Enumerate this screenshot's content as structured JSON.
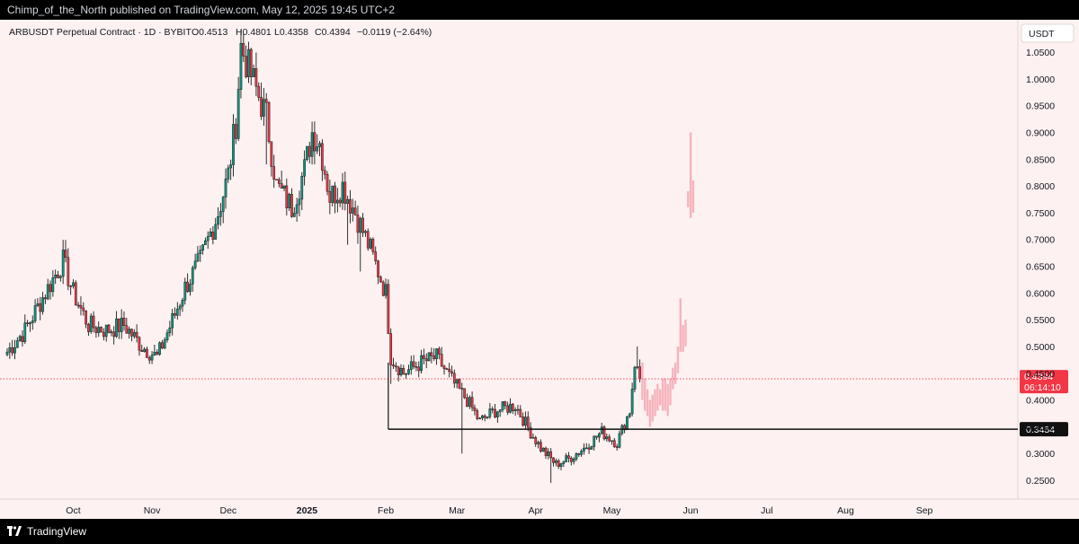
{
  "header": {
    "text": "Chimp_of_the_North published on TradingView.com, May 12, 2025 19:45 UTC+2"
  },
  "footer": {
    "brand": "TradingView"
  },
  "legend": {
    "symbol": "ARBUSDT Perpetual Contract · 1D · BYBIT",
    "open": "O0.4513",
    "high": "H0.4801",
    "low": "L0.4358",
    "close": "C0.4394",
    "change": "−0.0119 (−2.64%)"
  },
  "currency": "USDT",
  "chart_data": {
    "type": "candlestick",
    "ylim": [
      0.22,
      1.09
    ],
    "y_ticks": [
      0.25,
      0.3,
      0.35,
      0.4,
      0.45,
      0.5,
      0.55,
      0.6,
      0.65,
      0.7,
      0.75,
      0.8,
      0.85,
      0.9,
      0.95,
      1.0,
      1.05
    ],
    "y_tick_labels": [
      "0.2500",
      "0.3000",
      "0.3500",
      "0.4000",
      "0.4500",
      "0.5000",
      "0.5500",
      "0.6000",
      "0.6500",
      "0.7000",
      "0.7500",
      "0.8000",
      "0.8500",
      "0.9000",
      "0.9500",
      "1.0000",
      "1.0500"
    ],
    "x_axis_labels": [
      "Oct",
      "Nov",
      "Dec",
      "2025",
      "Feb",
      "Mar",
      "Apr",
      "May",
      "Jun",
      "Jul",
      "Aug",
      "Sep"
    ],
    "x_axis_dates": [
      "2024-10-01",
      "2024-11-01",
      "2024-12-01",
      "2025-01-01",
      "2025-02-01",
      "2025-03-01",
      "2025-04-01",
      "2025-05-01",
      "2025-06-01",
      "2025-07-01",
      "2025-08-01",
      "2025-09-01"
    ],
    "x_range": [
      "2024-09-05",
      "2025-09-30"
    ],
    "price_line": {
      "value": 0.4394,
      "label": "0.4394",
      "countdown": "06:14:10",
      "color": "#f23645"
    },
    "support_line": {
      "value": 0.3454,
      "label": "0.3454",
      "start": "2025-02-02",
      "drop_from": 0.47
    },
    "colors": {
      "up": "#089981",
      "down": "#f23645",
      "projection": "#f5b3bd",
      "background": "#fdf1f1"
    },
    "daily_ohlc": {
      "start": "2024-09-05",
      "anchors": [
        [
          "2024-09-05",
          0.49
        ],
        [
          "2024-09-12",
          0.53
        ],
        [
          "2024-09-20",
          0.6
        ],
        [
          "2024-09-27",
          0.66
        ],
        [
          "2024-10-01",
          0.6
        ],
        [
          "2024-10-07",
          0.54
        ],
        [
          "2024-10-14",
          0.53
        ],
        [
          "2024-10-21",
          0.54
        ],
        [
          "2024-10-28",
          0.5
        ],
        [
          "2024-11-03",
          0.48
        ],
        [
          "2024-11-10",
          0.56
        ],
        [
          "2024-11-14",
          0.61
        ],
        [
          "2024-11-20",
          0.66
        ],
        [
          "2024-11-27",
          0.75
        ],
        [
          "2024-12-01",
          0.82
        ],
        [
          "2024-12-04",
          0.92
        ],
        [
          "2024-12-06",
          1.06
        ],
        [
          "2024-12-09",
          1.02
        ],
        [
          "2024-12-12",
          0.98
        ],
        [
          "2024-12-16",
          0.93
        ],
        [
          "2024-12-20",
          0.8
        ],
        [
          "2024-12-26",
          0.76
        ],
        [
          "2024-12-31",
          0.83
        ],
        [
          "2025-01-03",
          0.9
        ],
        [
          "2025-01-06",
          0.88
        ],
        [
          "2025-01-10",
          0.78
        ],
        [
          "2025-01-15",
          0.8
        ],
        [
          "2025-01-20",
          0.75
        ],
        [
          "2025-01-26",
          0.68
        ],
        [
          "2025-02-01",
          0.6
        ],
        [
          "2025-02-03",
          0.48
        ],
        [
          "2025-02-08",
          0.45
        ],
        [
          "2025-02-15",
          0.47
        ],
        [
          "2025-02-21",
          0.48
        ],
        [
          "2025-02-28",
          0.43
        ],
        [
          "2025-03-05",
          0.4
        ],
        [
          "2025-03-10",
          0.36
        ],
        [
          "2025-03-16",
          0.38
        ],
        [
          "2025-03-24",
          0.39
        ],
        [
          "2025-03-30",
          0.34
        ],
        [
          "2025-04-03",
          0.31
        ],
        [
          "2025-04-09",
          0.28
        ],
        [
          "2025-04-14",
          0.29
        ],
        [
          "2025-04-20",
          0.31
        ],
        [
          "2025-04-27",
          0.34
        ],
        [
          "2025-05-03",
          0.32
        ],
        [
          "2025-05-08",
          0.38
        ],
        [
          "2025-05-10",
          0.47
        ],
        [
          "2025-05-12",
          0.4394
        ]
      ],
      "spikes": [
        [
          "2024-12-06",
          1.09
        ],
        [
          "2024-12-16",
          0.84
        ],
        [
          "2025-01-17",
          0.69
        ],
        [
          "2025-01-22",
          0.64
        ],
        [
          "2025-02-03",
          0.43
        ],
        [
          "2025-03-03",
          0.3
        ],
        [
          "2025-04-07",
          0.245
        ],
        [
          "2025-05-11",
          0.5
        ]
      ]
    },
    "projection_bars": [
      {
        "date": "2025-05-13",
        "low": 0.4,
        "high": 0.47
      },
      {
        "date": "2025-05-14",
        "low": 0.38,
        "high": 0.44
      },
      {
        "date": "2025-05-15",
        "low": 0.37,
        "high": 0.42
      },
      {
        "date": "2025-05-16",
        "low": 0.35,
        "high": 0.4
      },
      {
        "date": "2025-05-17",
        "low": 0.36,
        "high": 0.41
      },
      {
        "date": "2025-05-18",
        "low": 0.37,
        "high": 0.42
      },
      {
        "date": "2025-05-19",
        "low": 0.38,
        "high": 0.43
      },
      {
        "date": "2025-05-20",
        "low": 0.39,
        "high": 0.42
      },
      {
        "date": "2025-05-21",
        "low": 0.38,
        "high": 0.44
      },
      {
        "date": "2025-05-22",
        "low": 0.38,
        "high": 0.44
      },
      {
        "date": "2025-05-23",
        "low": 0.37,
        "high": 0.43
      },
      {
        "date": "2025-05-24",
        "low": 0.39,
        "high": 0.44
      },
      {
        "date": "2025-05-25",
        "low": 0.42,
        "high": 0.46
      },
      {
        "date": "2025-05-26",
        "low": 0.43,
        "high": 0.47
      },
      {
        "date": "2025-05-27",
        "low": 0.45,
        "high": 0.5
      },
      {
        "date": "2025-05-28",
        "low": 0.49,
        "high": 0.59
      },
      {
        "date": "2025-05-29",
        "low": 0.49,
        "high": 0.54
      },
      {
        "date": "2025-05-30",
        "low": 0.5,
        "high": 0.55
      },
      {
        "date": "2025-05-31",
        "low": 0.76,
        "high": 0.79
      },
      {
        "date": "2025-06-01",
        "low": 0.74,
        "high": 0.9
      },
      {
        "date": "2025-06-02",
        "low": 0.75,
        "high": 0.81
      }
    ]
  }
}
